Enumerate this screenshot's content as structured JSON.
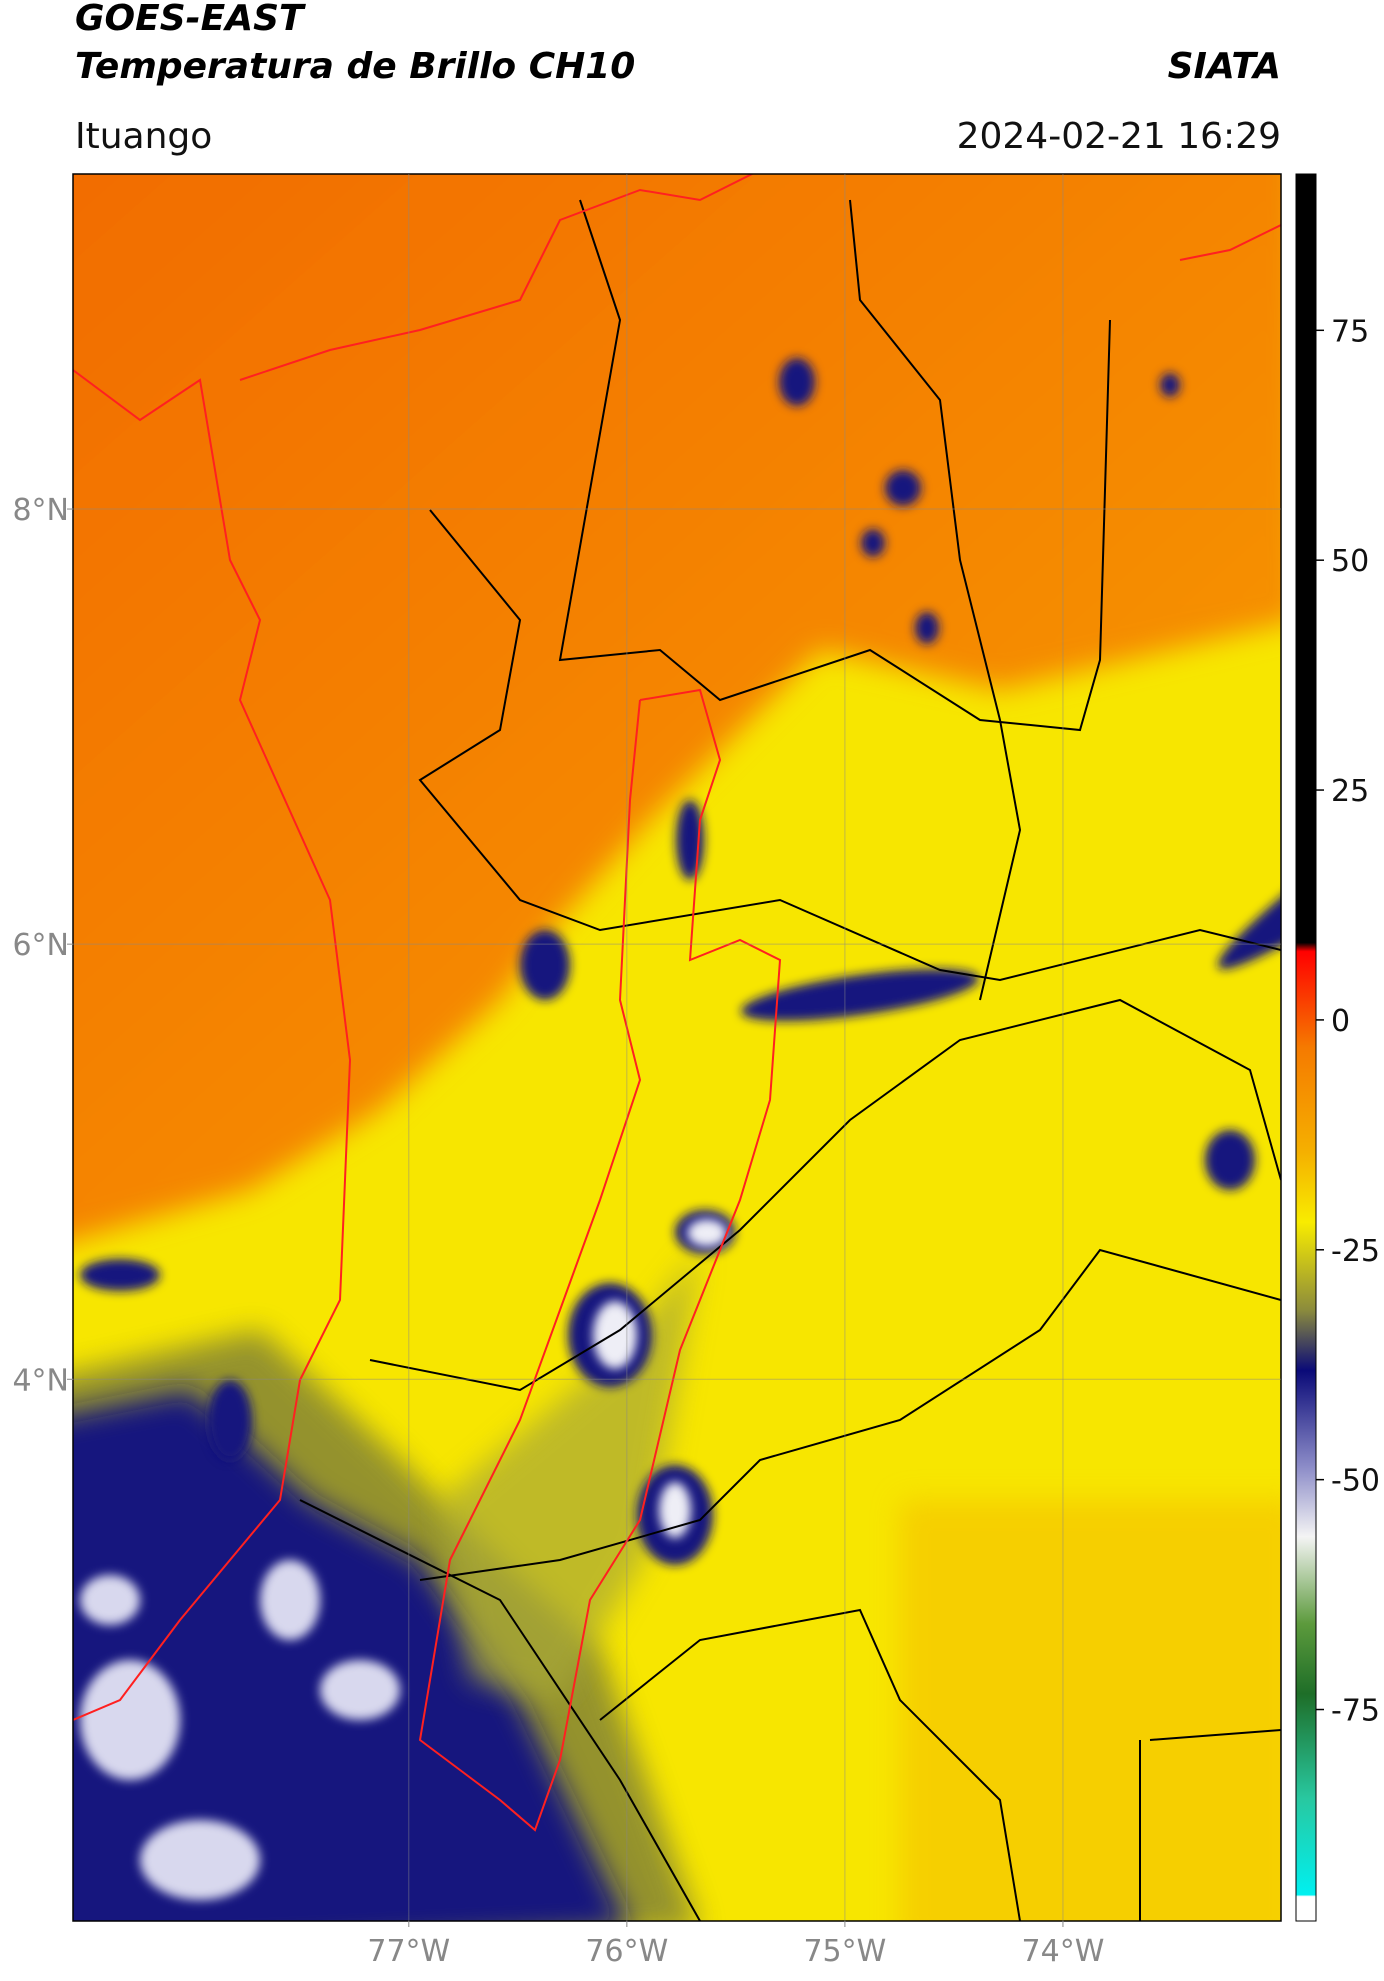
{
  "header": {
    "title": "GOES-EAST",
    "subtitle": "Temperatura de Brillo CH10",
    "source": "SIATA",
    "location": "Ituango",
    "timestamp": "2024-02-21 16:29"
  },
  "map": {
    "xlim": [
      -78.54,
      -73.0
    ],
    "ylim": [
      1.51,
      9.54
    ],
    "xticks": [
      {
        "value": -77,
        "label": "77°W"
      },
      {
        "value": -76,
        "label": "76°W"
      },
      {
        "value": -75,
        "label": "75°W"
      },
      {
        "value": -74,
        "label": "74°W"
      }
    ],
    "yticks": [
      {
        "value": 8,
        "label": "8°N"
      },
      {
        "value": 6,
        "label": "6°N"
      },
      {
        "value": 4,
        "label": "4°N"
      }
    ],
    "grid": true
  },
  "colorbar": {
    "lim": [
      -98,
      92
    ],
    "ticks": [
      75,
      50,
      25,
      0,
      -25,
      -50,
      -75
    ]
  }
}
